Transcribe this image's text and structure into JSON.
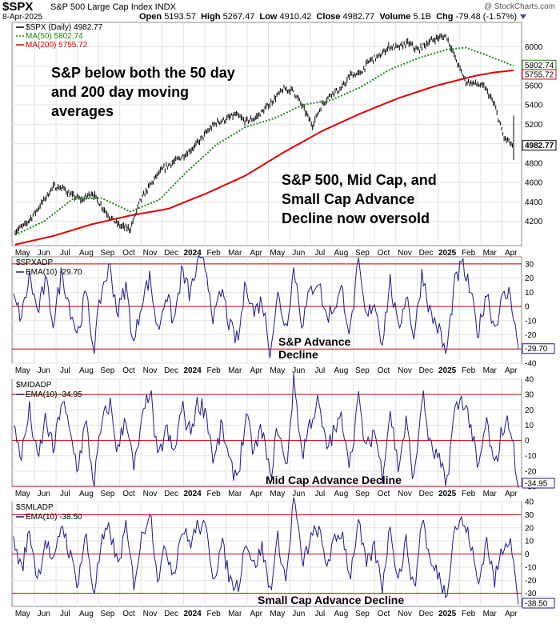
{
  "header": {
    "symbol": "$SPX",
    "name": "S&P 500 Large Cap Index INDX",
    "date": "8-Apr-2025",
    "open_label": "Open",
    "open": "5193.57",
    "high_label": "High",
    "high": "5267.47",
    "low_label": "Low",
    "low": "4910.42",
    "close_label": "Close",
    "close": "4982.77",
    "volume_label": "Volume",
    "volume": "5.1B",
    "chg_label": "Chg",
    "chg": "-79.48 (-1.57%)",
    "copyright": "@ StockCharts.com"
  },
  "colors": {
    "price": "#000000",
    "ma50": "#1a8a1a",
    "ma200": "#dd0000",
    "ema": "#1a1a8c",
    "refline": "#cc0000",
    "grid": "#e3e3e3"
  },
  "x_axis": {
    "months": [
      "May",
      "Jun",
      "Jul",
      "Aug",
      "Sep",
      "Oct",
      "Nov",
      "Dec",
      "2024",
      "Feb",
      "Mar",
      "Apr",
      "May",
      "Jun",
      "Jul",
      "Aug",
      "Sep",
      "Oct",
      "Nov",
      "Dec",
      "2025",
      "Feb",
      "Mar",
      "Apr"
    ]
  },
  "chart_data": [
    {
      "type": "line",
      "panel": "price",
      "legend": [
        "$SPX (Daily) 4982.77",
        "MA(50) 5802.74",
        "MA(200) 5755.72"
      ],
      "ylim": [
        3950,
        6250
      ],
      "y_ticks": [
        4200,
        4400,
        4600,
        4800,
        5000,
        5200,
        5400,
        5600,
        5800,
        6000
      ],
      "y_tick_labels": [
        "4200",
        "4400",
        "4600",
        "4800",
        "5000",
        "5200",
        "5400",
        "5600",
        "5800",
        "6000"
      ],
      "price_path": [
        [
          0,
          4100
        ],
        [
          1,
          4160
        ],
        [
          2,
          4280
        ],
        [
          3,
          4420
        ],
        [
          4,
          4560
        ],
        [
          5,
          4540
        ],
        [
          6,
          4460
        ],
        [
          7,
          4420
        ],
        [
          8,
          4500
        ],
        [
          9,
          4360
        ],
        [
          10,
          4230
        ],
        [
          11,
          4150
        ],
        [
          12,
          4120
        ],
        [
          13,
          4400
        ],
        [
          14,
          4560
        ],
        [
          15,
          4700
        ],
        [
          16,
          4780
        ],
        [
          17,
          4840
        ],
        [
          18,
          4910
        ],
        [
          19,
          5000
        ],
        [
          20,
          5120
        ],
        [
          21,
          5220
        ],
        [
          22,
          5250
        ],
        [
          23,
          5300
        ],
        [
          24,
          5230
        ],
        [
          25,
          5260
        ],
        [
          26,
          5350
        ],
        [
          27,
          5460
        ],
        [
          28,
          5560
        ],
        [
          29,
          5550
        ],
        [
          30,
          5380
        ],
        [
          31,
          5190
        ],
        [
          32,
          5400
        ],
        [
          33,
          5520
        ],
        [
          34,
          5560
        ],
        [
          35,
          5710
        ],
        [
          36,
          5720
        ],
        [
          37,
          5860
        ],
        [
          38,
          5900
        ],
        [
          39,
          6000
        ],
        [
          40,
          5990
        ],
        [
          41,
          6040
        ],
        [
          42,
          5960
        ],
        [
          43,
          6040
        ],
        [
          44,
          6090
        ],
        [
          45,
          6110
        ],
        [
          46,
          5860
        ],
        [
          47,
          5640
        ],
        [
          48,
          5620
        ],
        [
          49,
          5580
        ],
        [
          50,
          5400
        ],
        [
          51,
          5060
        ],
        [
          52,
          4982.77
        ]
      ],
      "ma50_path": [
        [
          0,
          4060
        ],
        [
          3,
          4200
        ],
        [
          6,
          4430
        ],
        [
          9,
          4440
        ],
        [
          12,
          4300
        ],
        [
          15,
          4420
        ],
        [
          18,
          4720
        ],
        [
          21,
          4990
        ],
        [
          24,
          5170
        ],
        [
          27,
          5260
        ],
        [
          30,
          5400
        ],
        [
          33,
          5450
        ],
        [
          36,
          5580
        ],
        [
          39,
          5760
        ],
        [
          42,
          5880
        ],
        [
          45,
          5970
        ],
        [
          47,
          5990
        ],
        [
          49,
          5920
        ],
        [
          52,
          5802.74
        ]
      ],
      "ma200_path": [
        [
          0,
          3960
        ],
        [
          4,
          4050
        ],
        [
          8,
          4170
        ],
        [
          12,
          4260
        ],
        [
          16,
          4330
        ],
        [
          20,
          4490
        ],
        [
          24,
          4670
        ],
        [
          28,
          4910
        ],
        [
          32,
          5130
        ],
        [
          36,
          5310
        ],
        [
          40,
          5470
        ],
        [
          44,
          5600
        ],
        [
          48,
          5700
        ],
        [
          50,
          5735
        ],
        [
          52,
          5755.72
        ]
      ],
      "annotations": [
        [
          "S&P below both the 50 day",
          "and 200 day moving",
          "averages"
        ],
        [
          "S&P 500, Mid Cap, and",
          "Small Cap Advance",
          "Decline now oversold"
        ]
      ],
      "last_values": [
        "5802.74",
        "5755.72",
        "4982.77"
      ]
    },
    {
      "type": "line",
      "panel": "spxadp",
      "title": "$SPXADP",
      "legend": "EMA(10) -29.70",
      "ylim": [
        -40,
        35
      ],
      "y_ticks": [
        -40,
        -30,
        -20,
        -10,
        0,
        10,
        20,
        30
      ],
      "y_tick_labels": [
        "-40",
        "-30",
        "-20",
        "-10",
        "0",
        "10",
        "20",
        "30"
      ],
      "ref_lines": [
        30,
        0,
        -30
      ],
      "annotation": [
        "S&P Advance",
        "Decline"
      ],
      "last_value": "-29.70",
      "values": [
        5,
        -8,
        22,
        -5,
        18,
        -12,
        25,
        0,
        -20,
        10,
        -30,
        12,
        28,
        -5,
        15,
        -28,
        5,
        20,
        -18,
        10,
        -12,
        25,
        8,
        30,
        28,
        -10,
        12,
        -15,
        -25,
        18,
        -5,
        5,
        -30,
        8,
        -15,
        28,
        -12,
        10,
        20,
        -8,
        0,
        12,
        -20,
        30,
        -10,
        5,
        -25,
        18,
        -18,
        10,
        -22,
        25,
        -5,
        -15,
        -35,
        15,
        30,
        10,
        -20,
        12,
        -15,
        5,
        10,
        -29.7
      ]
    },
    {
      "type": "line",
      "panel": "midadp",
      "title": "$MIDADP",
      "legend": "EMA(10) -34.95",
      "ylim": [
        -30,
        40
      ],
      "y_ticks": [
        -30,
        -20,
        -10,
        0,
        10,
        20,
        30,
        40
      ],
      "y_tick_labels": [
        "-30",
        "-20",
        "-10",
        "0",
        "10",
        "20",
        "30",
        "40"
      ],
      "ref_lines": [
        30,
        0,
        -30
      ],
      "annotation": [
        "Mid Cap Advance Decline"
      ],
      "last_value": "-34.95",
      "values": [
        8,
        -10,
        20,
        -15,
        15,
        -8,
        28,
        5,
        -18,
        12,
        -28,
        10,
        25,
        -8,
        18,
        -20,
        10,
        35,
        -15,
        8,
        -10,
        22,
        5,
        25,
        20,
        -15,
        10,
        -18,
        -22,
        15,
        -8,
        8,
        -25,
        10,
        -20,
        40,
        -10,
        12,
        25,
        -5,
        5,
        15,
        -15,
        28,
        -8,
        8,
        -22,
        20,
        -18,
        12,
        -28,
        32,
        -5,
        -12,
        -30,
        18,
        28,
        12,
        -22,
        14,
        -20,
        8,
        12,
        -34.95
      ]
    },
    {
      "type": "line",
      "panel": "smladp",
      "title": "$SMLADP",
      "legend": "EMA(10) -38.50",
      "ylim": [
        -40,
        40
      ],
      "y_ticks": [
        -30,
        -20,
        -10,
        0,
        10,
        20,
        30,
        40
      ],
      "y_tick_labels": [
        "-30",
        "-20",
        "-10",
        "0",
        "10",
        "20",
        "30",
        "40"
      ],
      "ref_lines": [
        30,
        0,
        -30
      ],
      "annotation": [
        "Small Cap Advance Decline"
      ],
      "last_value": "-38.50",
      "values": [
        10,
        -12,
        18,
        -20,
        12,
        -10,
        25,
        0,
        -22,
        15,
        -30,
        8,
        20,
        -10,
        20,
        -22,
        12,
        35,
        -18,
        5,
        -15,
        20,
        8,
        22,
        18,
        -18,
        8,
        -20,
        -25,
        12,
        -10,
        5,
        -28,
        12,
        -22,
        45,
        -8,
        10,
        20,
        -8,
        8,
        18,
        -18,
        25,
        -10,
        5,
        -25,
        22,
        -20,
        10,
        -30,
        30,
        -8,
        -15,
        -32,
        20,
        25,
        10,
        -25,
        12,
        -22,
        5,
        15,
        -38.5
      ]
    }
  ]
}
